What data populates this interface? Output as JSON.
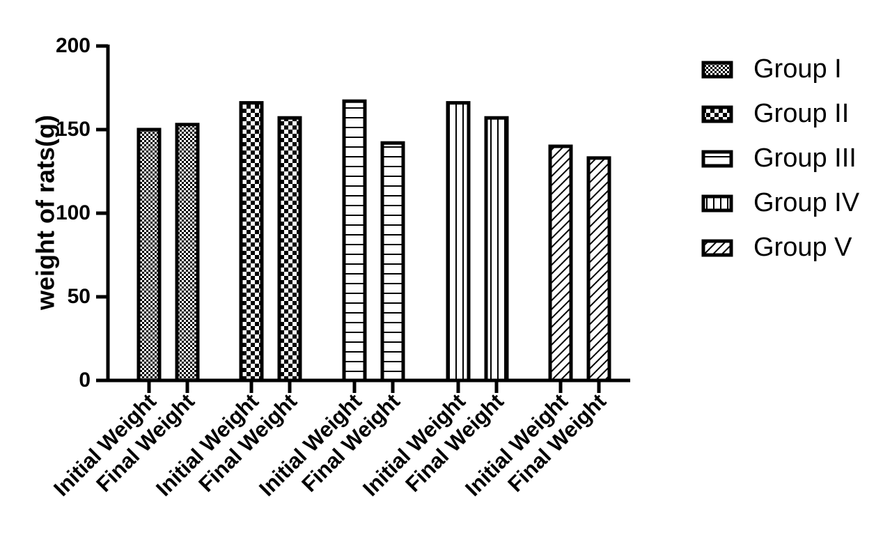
{
  "chart_data": {
    "type": "bar",
    "title": "",
    "xlabel": "",
    "ylabel": "weight of rats(g)",
    "ylim": [
      0,
      200
    ],
    "yticks": [
      0,
      50,
      100,
      150,
      200
    ],
    "grid": false,
    "legend_position": "right",
    "series": [
      {
        "name": "Group I",
        "pattern": "checker-fine",
        "categories": [
          "Initial Weight",
          "Final Weight"
        ],
        "values": [
          150,
          153
        ]
      },
      {
        "name": "Group II",
        "pattern": "checker-coarse",
        "categories": [
          "Initial Weight",
          "Final Weight"
        ],
        "values": [
          166,
          157
        ]
      },
      {
        "name": "Group III",
        "pattern": "horizontal-lines",
        "categories": [
          "Initial Weight",
          "Final Weight"
        ],
        "values": [
          167,
          142
        ]
      },
      {
        "name": "Group IV",
        "pattern": "vertical-lines",
        "categories": [
          "Initial Weight",
          "Final Weight"
        ],
        "values": [
          166,
          157
        ]
      },
      {
        "name": "Group V",
        "pattern": "diagonal-lines",
        "categories": [
          "Initial Weight",
          "Final Weight"
        ],
        "values": [
          140,
          133
        ]
      }
    ],
    "colors": {
      "stroke": "#000000",
      "fill": "#ffffff"
    }
  }
}
